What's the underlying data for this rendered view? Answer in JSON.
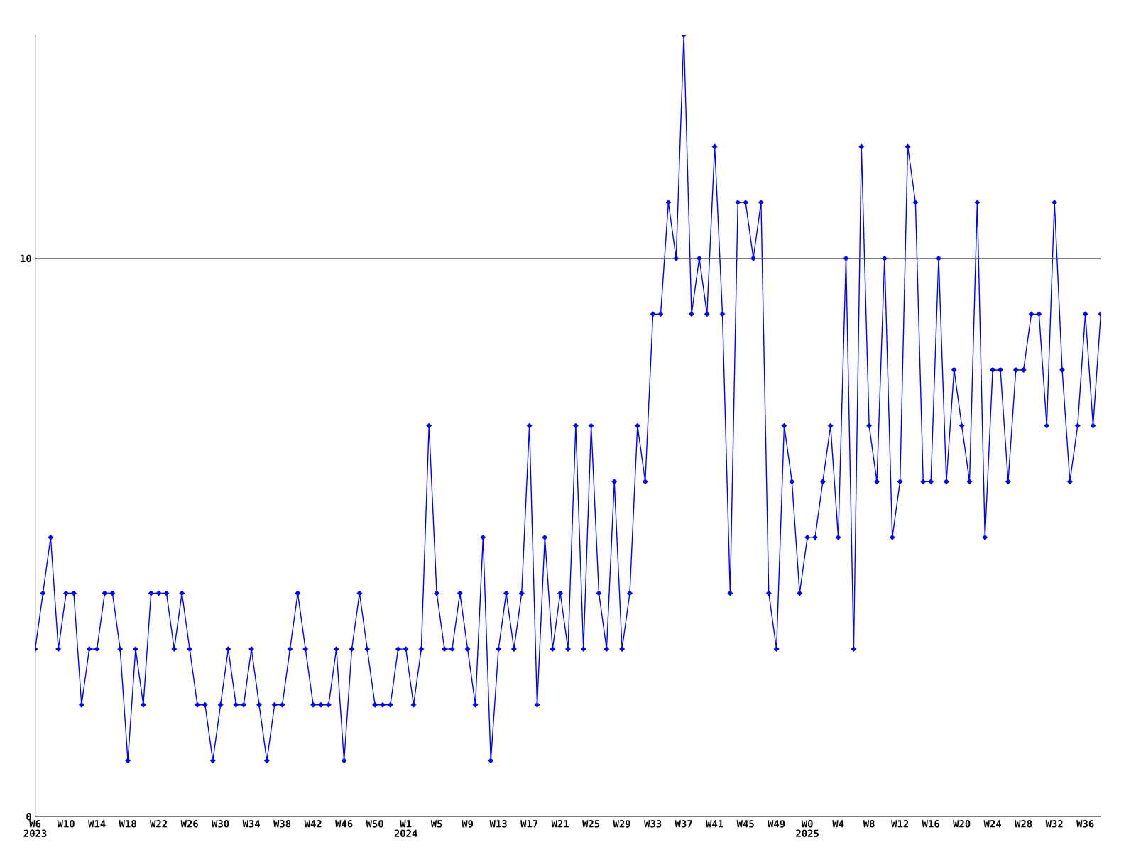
{
  "chart_data": {
    "type": "line",
    "categories": [
      "W6\n2023",
      null,
      null,
      null,
      "W10",
      null,
      null,
      null,
      "W14",
      null,
      null,
      null,
      "W18",
      null,
      null,
      null,
      "W22",
      null,
      null,
      null,
      "W26",
      null,
      null,
      null,
      "W30",
      null,
      null,
      null,
      "W34",
      null,
      null,
      null,
      "W38",
      null,
      null,
      null,
      "W42",
      null,
      null,
      null,
      "W46",
      null,
      null,
      null,
      "W50",
      null,
      null,
      null,
      "W1\n2024",
      null,
      null,
      null,
      "W5",
      null,
      null,
      null,
      "W9",
      null,
      null,
      null,
      "W13",
      null,
      null,
      null,
      "W17",
      null,
      null,
      null,
      "W21",
      null,
      null,
      null,
      "W25",
      null,
      null,
      null,
      "W29",
      null,
      null,
      null,
      "W33",
      null,
      null,
      null,
      "W37",
      null,
      null,
      null,
      "W41",
      null,
      null,
      null,
      "W45",
      null,
      null,
      null,
      "W49",
      null,
      null,
      null,
      "W0\n2025",
      null,
      null,
      null,
      "W4",
      null,
      null,
      null,
      "W8",
      null,
      null,
      null,
      "W12",
      null,
      null,
      null,
      "W16",
      null,
      null,
      null,
      "W20",
      null,
      null,
      null,
      "W24",
      null,
      null,
      null,
      "W28",
      null,
      null,
      null,
      "W32",
      null,
      null,
      null,
      "W36",
      null,
      null
    ],
    "series": [
      {
        "color": "#0000ff",
        "values": [
          3,
          4,
          5,
          3,
          4,
          4,
          2,
          3,
          3,
          4,
          4,
          3,
          1,
          3,
          2,
          4,
          4,
          4,
          3,
          4,
          3,
          2,
          2,
          1,
          2,
          3,
          2,
          2,
          3,
          2,
          1,
          2,
          2,
          3,
          4,
          3,
          2,
          2,
          2,
          3,
          1,
          3,
          4,
          3,
          2,
          2,
          2,
          3,
          3,
          2,
          3,
          7,
          4,
          3,
          3,
          4,
          3,
          2,
          5,
          1,
          3,
          4,
          3,
          4,
          7,
          2,
          5,
          3,
          4,
          3,
          7,
          3,
          7,
          4,
          3,
          6,
          3,
          4,
          7,
          6,
          9,
          9,
          11,
          10,
          14,
          9,
          10,
          9,
          12,
          9,
          4,
          11,
          11,
          10,
          11,
          4,
          3,
          7,
          6,
          4,
          5,
          5,
          6,
          7,
          5,
          10,
          3,
          12,
          7,
          6,
          10,
          5,
          6,
          12,
          11,
          6,
          6,
          10,
          6,
          8,
          7,
          6,
          11,
          5,
          8,
          8,
          6,
          8,
          8,
          9,
          9,
          7,
          11,
          8,
          6,
          7,
          9,
          7,
          9
        ]
      }
    ],
    "ylim": [
      0,
      14
    ],
    "yticks": [
      0,
      10
    ],
    "grid": "y",
    "marker": "diamond",
    "line_style": "solid",
    "legend": false
  }
}
